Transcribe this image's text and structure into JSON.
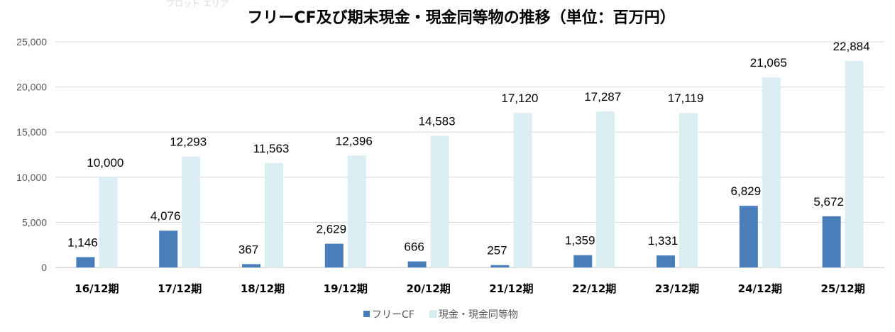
{
  "chart_data": {
    "type": "bar",
    "title": "フリーCF及び期末現金・現金同等物の推移（単位：百万円）",
    "watermark": "プロット エリア",
    "categories": [
      "16/12期",
      "17/12期",
      "18/12期",
      "19/12期",
      "20/12期",
      "21/12期",
      "22/12期",
      "23/12期",
      "24/12期",
      "25/12期"
    ],
    "series": [
      {
        "name": "フリーCF",
        "color": "#4a7ebb",
        "values": [
          1146,
          4076,
          367,
          2629,
          666,
          257,
          1359,
          1331,
          6829,
          5672
        ]
      },
      {
        "name": "現金・現金同等物",
        "color": "#dbeef4",
        "values": [
          10000,
          12293,
          11563,
          12396,
          14583,
          17120,
          17287,
          17119,
          21065,
          22884
        ]
      }
    ],
    "ylim": [
      0,
      25000
    ],
    "yticks": [
      0,
      5000,
      10000,
      15000,
      20000,
      25000
    ],
    "grid": true,
    "legend": "bottom"
  }
}
